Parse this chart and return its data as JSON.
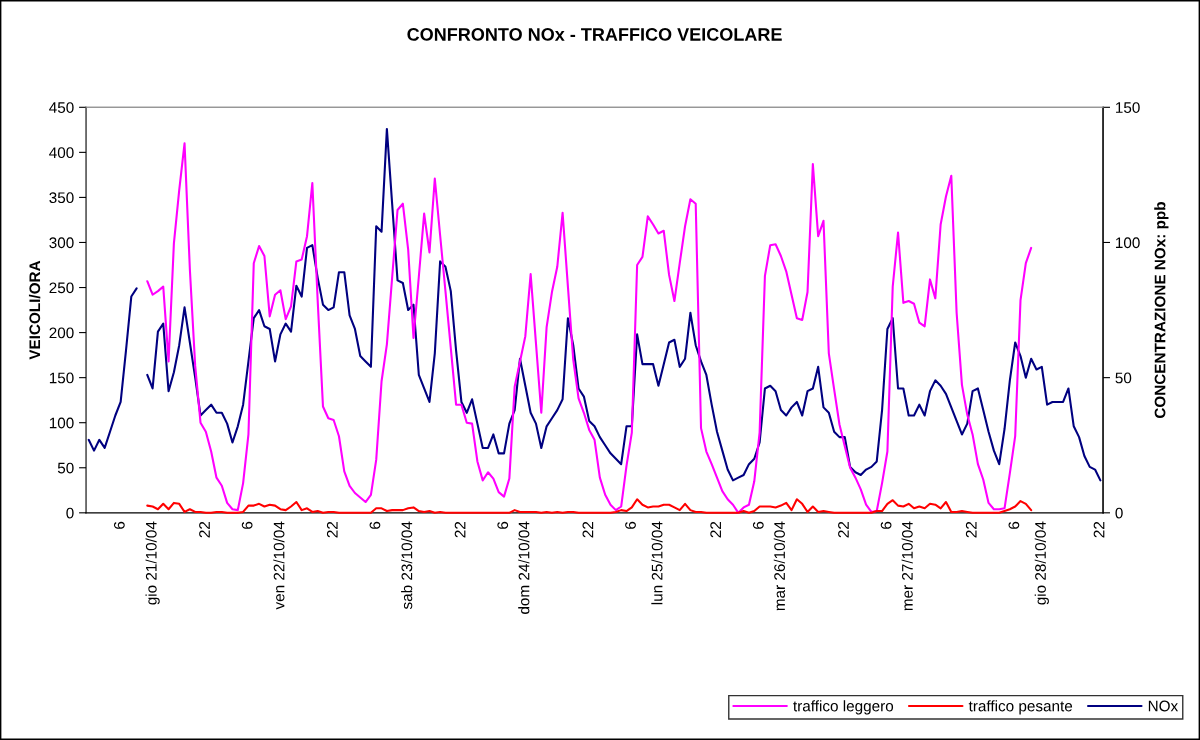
{
  "chart_data": {
    "type": "line",
    "title": "CONFRONTO NOx - TRAFFICO VEICOLARE",
    "ylabel": "VEICOLI/ORA",
    "y2label": "CONCENTRAZIONE NOx: ppb",
    "categories": [
      null,
      null,
      null,
      null,
      null,
      null,
      "6",
      null,
      null,
      null,
      null,
      null,
      "gio 21/10/04",
      null,
      null,
      null,
      null,
      null,
      null,
      null,
      null,
      null,
      "22",
      null,
      null,
      null,
      null,
      null,
      null,
      null,
      "6",
      null,
      null,
      null,
      null,
      null,
      "ven 22/10/04",
      null,
      null,
      null,
      null,
      null,
      null,
      null,
      null,
      null,
      "22",
      null,
      null,
      null,
      null,
      null,
      null,
      null,
      "6",
      null,
      null,
      null,
      null,
      null,
      "sab 23/10/04",
      null,
      null,
      null,
      null,
      null,
      null,
      null,
      null,
      null,
      "22",
      null,
      null,
      null,
      null,
      null,
      null,
      null,
      "6",
      null,
      null,
      null,
      "dom 24/10/04",
      null,
      null,
      null,
      null,
      null,
      null,
      null,
      null,
      null,
      null,
      null,
      "22",
      null,
      null,
      null,
      null,
      null,
      null,
      null,
      "6",
      null,
      null,
      null,
      null,
      "lun 25/10/04",
      null,
      null,
      null,
      null,
      null,
      null,
      null,
      null,
      null,
      null,
      "22",
      null,
      null,
      null,
      null,
      null,
      null,
      null,
      "6",
      null,
      null,
      null,
      "mar 26/10/04",
      null,
      null,
      null,
      null,
      null,
      null,
      null,
      null,
      null,
      null,
      null,
      "22",
      null,
      null,
      null,
      null,
      null,
      null,
      null,
      "6",
      null,
      null,
      null,
      "mer 27/10/04",
      null,
      null,
      null,
      null,
      null,
      null,
      null,
      null,
      null,
      null,
      null,
      "22",
      null,
      null,
      null,
      null,
      null,
      null,
      null,
      "6",
      null,
      null,
      null,
      null,
      "gio 28/10/04",
      null,
      null,
      null,
      null,
      null,
      null,
      null,
      null,
      null,
      null,
      "22"
    ],
    "ylim": [
      0,
      450
    ],
    "yticks": [
      0,
      50,
      100,
      150,
      200,
      250,
      300,
      350,
      400,
      450
    ],
    "y2lim": [
      0,
      150
    ],
    "y2ticks": [
      0,
      50,
      100,
      150
    ],
    "legend": "bottom right",
    "line_style": "solid",
    "series": [
      {
        "name": "traffico leggero",
        "color": "#ff00ff",
        "values": [
          null,
          null,
          null,
          null,
          null,
          null,
          null,
          null,
          null,
          null,
          null,
          257,
          242,
          246,
          251,
          168,
          299,
          358,
          410,
          270,
          163,
          100,
          90,
          68,
          39,
          30,
          11,
          4,
          3,
          33,
          87,
          277,
          296,
          285,
          218,
          242,
          247,
          215,
          229,
          279,
          281,
          307,
          366,
          236,
          118,
          105,
          103,
          85,
          46,
          30,
          22,
          17,
          12,
          20,
          59,
          146,
          187,
          262,
          336,
          343,
          292,
          194,
          262,
          332,
          289,
          371,
          308,
          246,
          183,
          120,
          120,
          100,
          99,
          57,
          36,
          45,
          38,
          23,
          18,
          38,
          140,
          168,
          196,
          265,
          188,
          111,
          206,
          245,
          273,
          333,
          251,
          170,
          127,
          111,
          92,
          81,
          39,
          20,
          9,
          3,
          7,
          52,
          89,
          275,
          284,
          329,
          320,
          310,
          313,
          264,
          235,
          277,
          318,
          348,
          343,
          94,
          68,
          54,
          39,
          24,
          15,
          9,
          0,
          6,
          9,
          35,
          89,
          263,
          297,
          298,
          285,
          268,
          242,
          216,
          214,
          245,
          387,
          307,
          324,
          177,
          137,
          98,
          74,
          50,
          39,
          26,
          9,
          1,
          2,
          33,
          68,
          251,
          311,
          233,
          235,
          232,
          211,
          207,
          259,
          238,
          320,
          351,
          374,
          222,
          142,
          109,
          87,
          54,
          37,
          11,
          4,
          4,
          5,
          44,
          85,
          236,
          277,
          294,
          null,
          null,
          null,
          null,
          null,
          null,
          null,
          null,
          null,
          null,
          null,
          null,
          null
        ]
      },
      {
        "name": "traffico pesante",
        "color": "#ff0000",
        "values": [
          null,
          null,
          null,
          null,
          null,
          null,
          null,
          null,
          null,
          null,
          null,
          8,
          7,
          4,
          10,
          4,
          11,
          10,
          1,
          4,
          1,
          1,
          0,
          0,
          1,
          1,
          0,
          0,
          0,
          1,
          8,
          8,
          10,
          7,
          9,
          8,
          4,
          3,
          7,
          12,
          3,
          5,
          1,
          2,
          0,
          1,
          1,
          0,
          0,
          0,
          0,
          0,
          0,
          0,
          5,
          5,
          2,
          3,
          3,
          3,
          5,
          6,
          2,
          1,
          2,
          0,
          1,
          0,
          0,
          0,
          0,
          0,
          0,
          0,
          0,
          0,
          0,
          0,
          0,
          0,
          3,
          1,
          1,
          1,
          1,
          0,
          1,
          0,
          1,
          0,
          1,
          1,
          0,
          0,
          0,
          0,
          0,
          0,
          0,
          1,
          3,
          2,
          6,
          15,
          9,
          6,
          7,
          7,
          9,
          9,
          6,
          3,
          10,
          3,
          1,
          1,
          0,
          0,
          0,
          0,
          0,
          0,
          0,
          2,
          0,
          2,
          7,
          7,
          7,
          6,
          8,
          11,
          3,
          15,
          10,
          1,
          7,
          1,
          2,
          1,
          0,
          0,
          0,
          0,
          0,
          0,
          0,
          0,
          2,
          2,
          10,
          14,
          8,
          7,
          10,
          5,
          7,
          5,
          10,
          9,
          5,
          12,
          1,
          1,
          2,
          1,
          0,
          0,
          0,
          0,
          0,
          0,
          2,
          4,
          7,
          13,
          10,
          3,
          null,
          null,
          null,
          null,
          null,
          null,
          null,
          null,
          null,
          null,
          null,
          null,
          null
        ]
      },
      {
        "name": "NOx",
        "color": "#000080",
        "axis": "y2",
        "values": [
          27,
          23,
          27,
          24,
          30,
          36,
          41,
          60,
          80,
          83,
          null,
          51,
          46,
          67,
          70,
          45,
          52,
          62,
          76,
          63,
          50,
          36,
          38,
          40,
          37,
          37,
          33,
          26,
          32,
          40,
          56,
          72,
          75,
          69,
          68,
          56,
          66,
          70,
          67,
          84,
          80,
          98,
          99,
          87,
          77,
          75,
          76,
          89,
          89,
          73,
          68,
          58,
          56,
          54,
          106,
          104,
          142,
          114,
          86,
          85,
          75,
          77,
          51,
          46,
          41,
          59,
          93,
          91,
          82,
          60,
          41,
          37,
          42,
          33,
          24,
          24,
          29,
          22,
          22,
          33,
          38,
          57,
          47,
          37,
          33,
          24,
          32,
          35,
          38,
          42,
          72,
          62,
          46,
          43,
          34,
          32,
          28,
          25,
          22,
          20,
          18,
          32,
          32,
          66,
          55,
          55,
          55,
          47,
          55,
          63,
          64,
          54,
          57,
          74,
          62,
          56,
          51,
          40,
          30,
          23,
          16,
          12,
          13,
          14,
          18,
          20,
          26,
          46,
          47,
          45,
          38,
          36,
          39,
          41,
          36,
          45,
          46,
          54,
          39,
          37,
          30,
          28,
          28,
          17,
          15,
          14,
          16,
          17,
          19,
          38,
          68,
          72,
          46,
          46,
          36,
          36,
          40,
          36,
          45,
          49,
          47,
          44,
          39,
          34,
          29,
          33,
          45,
          46,
          38,
          30,
          23,
          18,
          31,
          49,
          63,
          58,
          50,
          57,
          53,
          54,
          40,
          41,
          41,
          41,
          46,
          32,
          28,
          21,
          17,
          16,
          12
        ]
      }
    ]
  }
}
